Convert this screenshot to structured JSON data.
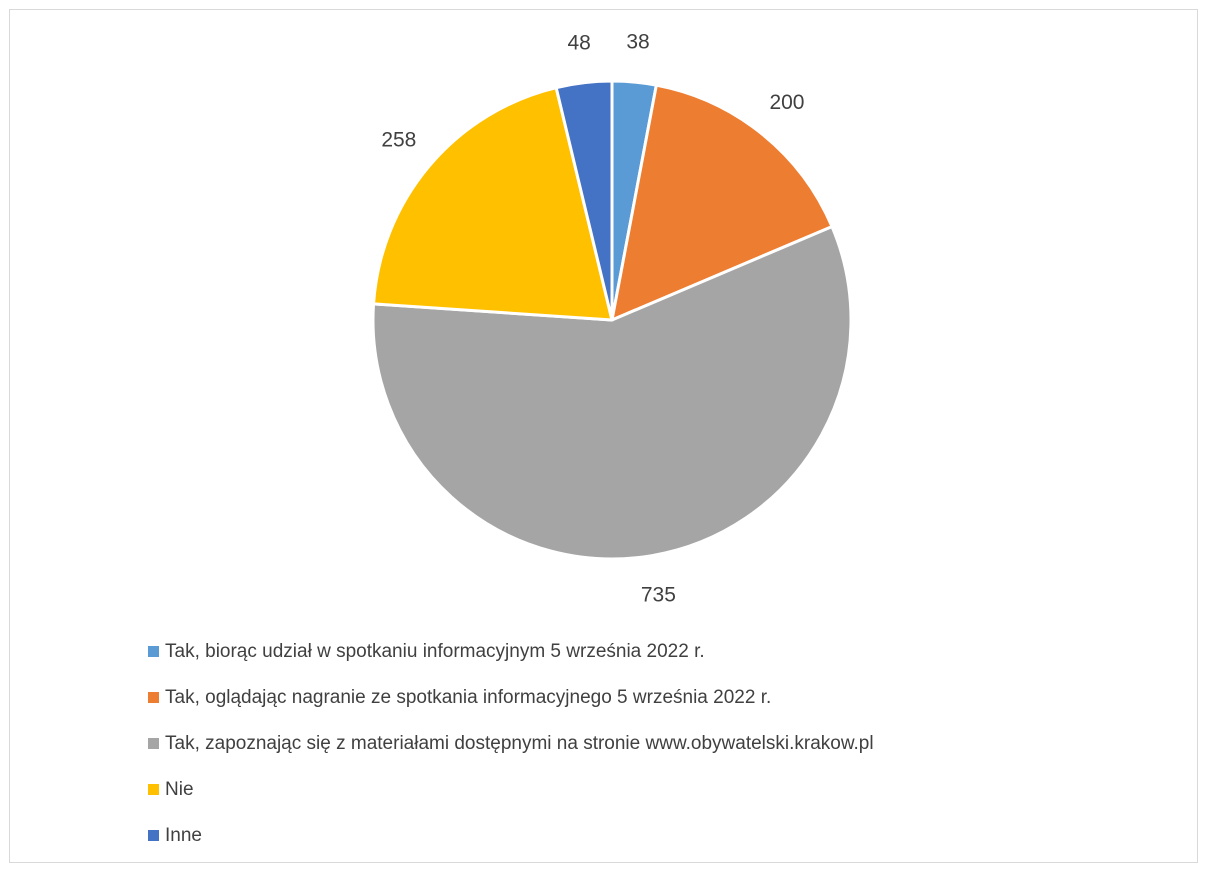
{
  "chart_data": {
    "type": "pie",
    "title": "",
    "categories": [
      "Tak, biorąc udział w spotkaniu informacyjnym 5 września 2022 r.",
      "Tak, oglądając nagranie ze spotkania informacyjnego 5 września 2022 r.",
      "Tak, zapoznając się z materiałami dostępnymi na stronie www.obywatelski.krakow.pl",
      "Nie",
      "Inne"
    ],
    "values": [
      38,
      200,
      735,
      258,
      48
    ],
    "data_labels": [
      "38",
      "200",
      "735",
      "258",
      "48"
    ],
    "colors": [
      "#5B9BD5",
      "#ED7D31",
      "#A5A5A5",
      "#FFC000",
      "#4472C4"
    ],
    "legend_position": "bottom"
  }
}
